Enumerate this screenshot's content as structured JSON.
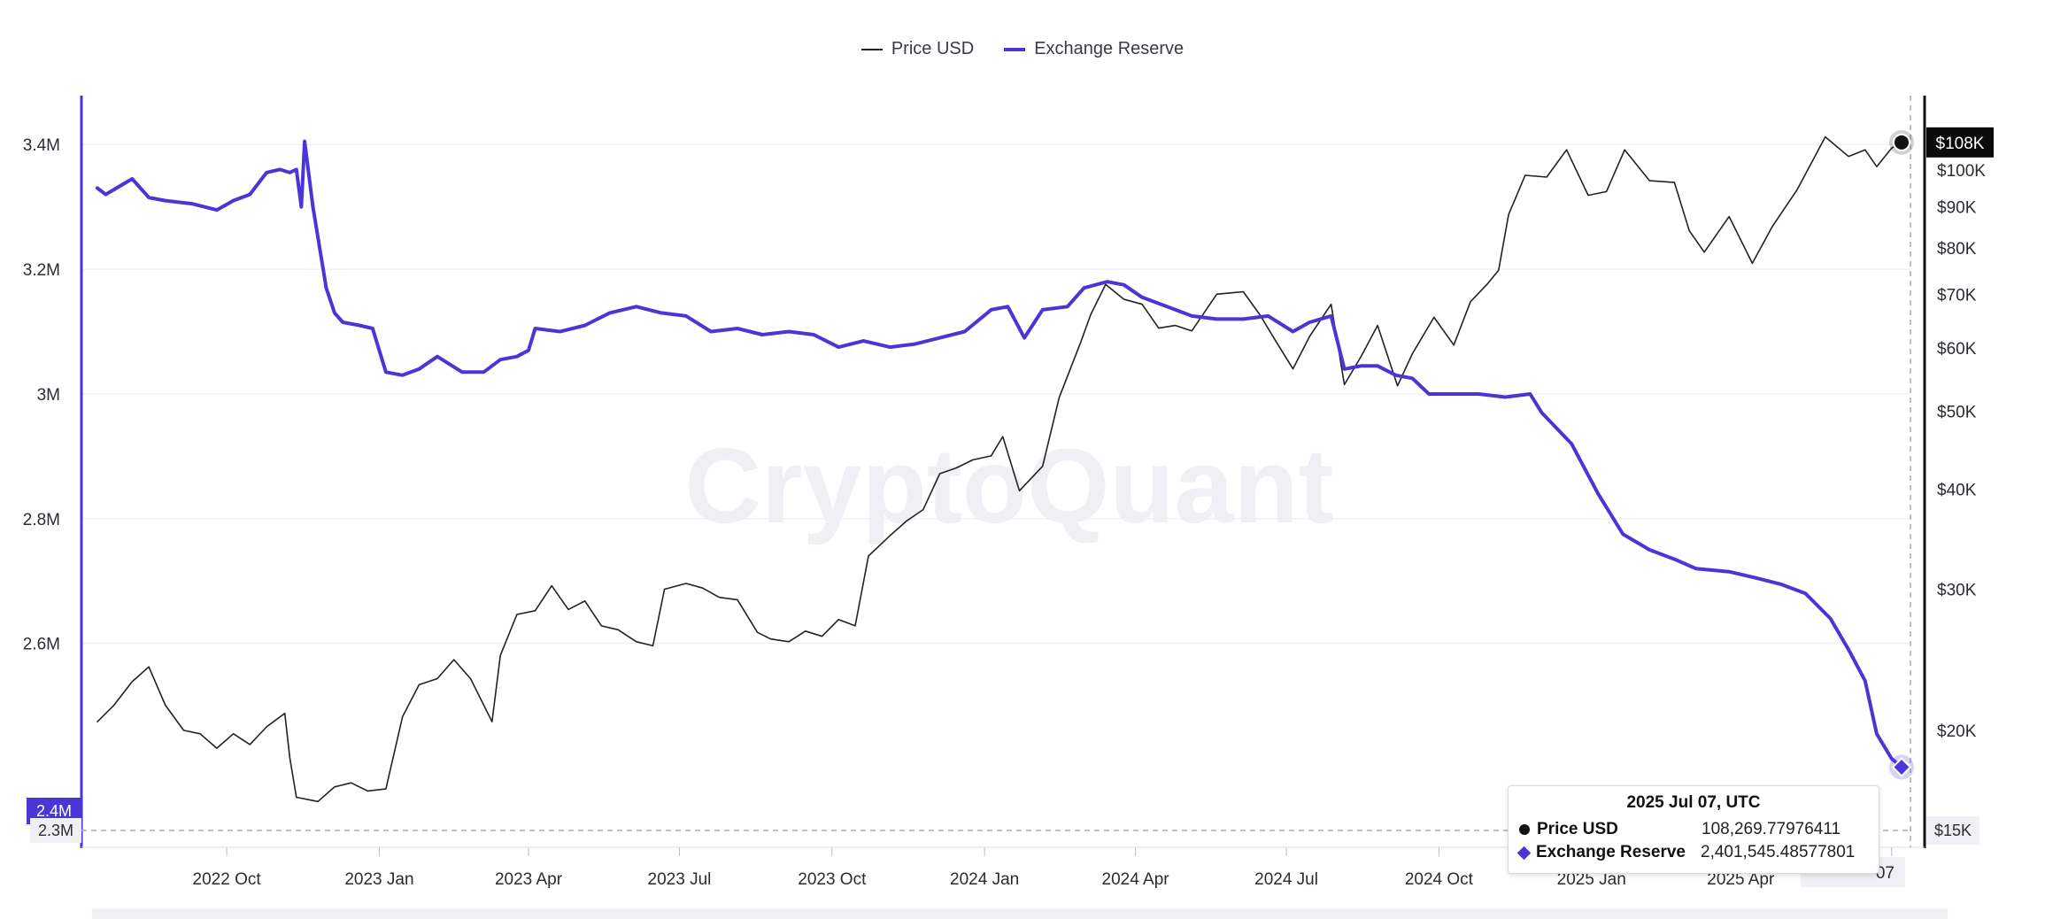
{
  "legend": {
    "price_label": "Price USD",
    "reserve_label": "Exchange Reserve"
  },
  "watermark": "CryptoQuant",
  "colors": {
    "price": "#222222",
    "reserve": "#4b35d6",
    "grid": "#ececf1",
    "badge": "#0b0b0b"
  },
  "tooltip": {
    "title": "2025 Jul 07, UTC",
    "price_label": "Price USD",
    "price_value": "108,269.77976411",
    "reserve_label": "Exchange Reserve",
    "reserve_value": "2,401,545.48577801"
  },
  "chart_data": {
    "type": "line",
    "left_axis": {
      "ticks": [
        2.6,
        2.8,
        3.0,
        3.2,
        3.4
      ],
      "labels": [
        "2.6M",
        "2.8M",
        "3M",
        "3.2M",
        "3.4M"
      ],
      "range": [
        2.3,
        3.45
      ],
      "current_badge": "2.4M",
      "bottom_badge": "2.3M"
    },
    "right_axis": {
      "scale": "log",
      "ticks": [
        20000,
        30000,
        40000,
        50000,
        60000,
        70000,
        80000,
        90000,
        100000
      ],
      "labels": [
        "$20K",
        "$30K",
        "$40K",
        "$50K",
        "$60K",
        "$70K",
        "$80K",
        "$90K",
        "$100K"
      ],
      "range": [
        15000,
        108500
      ],
      "current_badge": "$108K",
      "bottom_badge": "$15K"
    },
    "x_axis": {
      "range": [
        "2022-07-15",
        "2025-07-07"
      ],
      "ticks": [
        "2022-10-01",
        "2023-01-01",
        "2023-04-01",
        "2023-07-01",
        "2023-10-01",
        "2024-01-01",
        "2024-04-01",
        "2024-07-01",
        "2024-10-01",
        "2025-01-01",
        "2025-04-01",
        "2025-07-01"
      ],
      "labels": [
        "2022 Oct",
        "2023 Jan",
        "2023 Apr",
        "2023 Jul",
        "2023 Oct",
        "2024 Jan",
        "2024 Apr",
        "2024 Jul",
        "2024 Oct",
        "2025 Jan",
        "2025 Apr",
        "Jul"
      ],
      "current_badge": "07"
    },
    "series": [
      {
        "name": "Price USD",
        "axis": "right",
        "points": [
          [
            "2022-07-15",
            20500
          ],
          [
            "2022-07-25",
            21500
          ],
          [
            "2022-08-05",
            23000
          ],
          [
            "2022-08-15",
            24000
          ],
          [
            "2022-08-25",
            21500
          ],
          [
            "2022-09-05",
            20000
          ],
          [
            "2022-09-15",
            19800
          ],
          [
            "2022-09-25",
            19000
          ],
          [
            "2022-10-05",
            19800
          ],
          [
            "2022-10-15",
            19200
          ],
          [
            "2022-10-25",
            20200
          ],
          [
            "2022-11-05",
            21000
          ],
          [
            "2022-11-08",
            18500
          ],
          [
            "2022-11-12",
            16500
          ],
          [
            "2022-11-25",
            16300
          ],
          [
            "2022-12-05",
            17000
          ],
          [
            "2022-12-15",
            17200
          ],
          [
            "2022-12-25",
            16800
          ],
          [
            "2023-01-05",
            16900
          ],
          [
            "2023-01-15",
            20800
          ],
          [
            "2023-01-25",
            22800
          ],
          [
            "2023-02-05",
            23200
          ],
          [
            "2023-02-15",
            24500
          ],
          [
            "2023-02-25",
            23200
          ],
          [
            "2023-03-10",
            20500
          ],
          [
            "2023-03-15",
            24800
          ],
          [
            "2023-03-25",
            27900
          ],
          [
            "2023-04-05",
            28200
          ],
          [
            "2023-04-15",
            30300
          ],
          [
            "2023-04-25",
            28300
          ],
          [
            "2023-05-05",
            29000
          ],
          [
            "2023-05-15",
            27000
          ],
          [
            "2023-05-25",
            26700
          ],
          [
            "2023-06-05",
            25800
          ],
          [
            "2023-06-15",
            25500
          ],
          [
            "2023-06-22",
            30000
          ],
          [
            "2023-07-05",
            30500
          ],
          [
            "2023-07-15",
            30100
          ],
          [
            "2023-07-25",
            29300
          ],
          [
            "2023-08-05",
            29100
          ],
          [
            "2023-08-17",
            26500
          ],
          [
            "2023-08-25",
            26000
          ],
          [
            "2023-09-05",
            25800
          ],
          [
            "2023-09-15",
            26600
          ],
          [
            "2023-09-25",
            26200
          ],
          [
            "2023-10-05",
            27500
          ],
          [
            "2023-10-15",
            27000
          ],
          [
            "2023-10-23",
            33000
          ],
          [
            "2023-11-05",
            35000
          ],
          [
            "2023-11-15",
            36500
          ],
          [
            "2023-11-25",
            37700
          ],
          [
            "2023-12-05",
            41800
          ],
          [
            "2023-12-15",
            42500
          ],
          [
            "2023-12-25",
            43500
          ],
          [
            "2024-01-05",
            44000
          ],
          [
            "2024-01-12",
            46500
          ],
          [
            "2024-01-22",
            39800
          ],
          [
            "2024-02-05",
            42700
          ],
          [
            "2024-02-15",
            52000
          ],
          [
            "2024-02-28",
            61000
          ],
          [
            "2024-03-05",
            66000
          ],
          [
            "2024-03-14",
            72000
          ],
          [
            "2024-03-25",
            69000
          ],
          [
            "2024-04-05",
            68000
          ],
          [
            "2024-04-15",
            63500
          ],
          [
            "2024-04-25",
            64000
          ],
          [
            "2024-05-05",
            63000
          ],
          [
            "2024-05-20",
            70000
          ],
          [
            "2024-06-05",
            70500
          ],
          [
            "2024-06-15",
            66000
          ],
          [
            "2024-06-25",
            61000
          ],
          [
            "2024-07-05",
            56500
          ],
          [
            "2024-07-15",
            62000
          ],
          [
            "2024-07-28",
            68000
          ],
          [
            "2024-08-05",
            54000
          ],
          [
            "2024-08-15",
            58500
          ],
          [
            "2024-08-25",
            64000
          ],
          [
            "2024-09-06",
            53800
          ],
          [
            "2024-09-15",
            59000
          ],
          [
            "2024-09-28",
            65500
          ],
          [
            "2024-10-10",
            60500
          ],
          [
            "2024-10-20",
            68500
          ],
          [
            "2024-10-30",
            72000
          ],
          [
            "2024-11-06",
            75000
          ],
          [
            "2024-11-12",
            88000
          ],
          [
            "2024-11-22",
            98500
          ],
          [
            "2024-12-05",
            98000
          ],
          [
            "2024-12-17",
            106000
          ],
          [
            "2024-12-30",
            93000
          ],
          [
            "2025-01-10",
            94000
          ],
          [
            "2025-01-21",
            106000
          ],
          [
            "2025-02-05",
            97000
          ],
          [
            "2025-02-20",
            96500
          ],
          [
            "2025-03-01",
            84000
          ],
          [
            "2025-03-10",
            79000
          ],
          [
            "2025-03-25",
            87500
          ],
          [
            "2025-04-08",
            76500
          ],
          [
            "2025-04-20",
            85000
          ],
          [
            "2025-05-05",
            94500
          ],
          [
            "2025-05-22",
            110000
          ],
          [
            "2025-06-05",
            104000
          ],
          [
            "2025-06-15",
            106000
          ],
          [
            "2025-06-22",
            101000
          ],
          [
            "2025-07-01",
            106500
          ],
          [
            "2025-07-07",
            108270
          ]
        ]
      },
      {
        "name": "Exchange Reserve",
        "axis": "left",
        "points": [
          [
            "2022-07-15",
            3.33
          ],
          [
            "2022-07-20",
            3.32
          ],
          [
            "2022-08-05",
            3.345
          ],
          [
            "2022-08-15",
            3.315
          ],
          [
            "2022-08-25",
            3.31
          ],
          [
            "2022-09-10",
            3.305
          ],
          [
            "2022-09-25",
            3.295
          ],
          [
            "2022-10-05",
            3.31
          ],
          [
            "2022-10-15",
            3.32
          ],
          [
            "2022-10-25",
            3.355
          ],
          [
            "2022-11-02",
            3.36
          ],
          [
            "2022-11-08",
            3.355
          ],
          [
            "2022-11-12",
            3.36
          ],
          [
            "2022-11-15",
            3.3
          ],
          [
            "2022-11-17",
            3.405
          ],
          [
            "2022-11-22",
            3.3
          ],
          [
            "2022-11-30",
            3.17
          ],
          [
            "2022-12-05",
            3.13
          ],
          [
            "2022-12-10",
            3.115
          ],
          [
            "2022-12-20",
            3.11
          ],
          [
            "2022-12-28",
            3.105
          ],
          [
            "2023-01-05",
            3.035
          ],
          [
            "2023-01-15",
            3.03
          ],
          [
            "2023-01-25",
            3.04
          ],
          [
            "2023-02-05",
            3.06
          ],
          [
            "2023-02-20",
            3.035
          ],
          [
            "2023-03-05",
            3.035
          ],
          [
            "2023-03-15",
            3.055
          ],
          [
            "2023-03-25",
            3.06
          ],
          [
            "2023-04-01",
            3.07
          ],
          [
            "2023-04-05",
            3.105
          ],
          [
            "2023-04-20",
            3.1
          ],
          [
            "2023-05-05",
            3.11
          ],
          [
            "2023-05-20",
            3.13
          ],
          [
            "2023-06-05",
            3.14
          ],
          [
            "2023-06-20",
            3.13
          ],
          [
            "2023-07-05",
            3.125
          ],
          [
            "2023-07-20",
            3.1
          ],
          [
            "2023-08-05",
            3.105
          ],
          [
            "2023-08-20",
            3.095
          ],
          [
            "2023-09-05",
            3.1
          ],
          [
            "2023-09-20",
            3.095
          ],
          [
            "2023-10-05",
            3.075
          ],
          [
            "2023-10-20",
            3.085
          ],
          [
            "2023-11-05",
            3.075
          ],
          [
            "2023-11-20",
            3.08
          ],
          [
            "2023-12-05",
            3.09
          ],
          [
            "2023-12-20",
            3.1
          ],
          [
            "2024-01-05",
            3.135
          ],
          [
            "2024-01-15",
            3.14
          ],
          [
            "2024-01-25",
            3.09
          ],
          [
            "2024-02-05",
            3.135
          ],
          [
            "2024-02-20",
            3.14
          ],
          [
            "2024-03-01",
            3.17
          ],
          [
            "2024-03-15",
            3.18
          ],
          [
            "2024-03-25",
            3.175
          ],
          [
            "2024-04-05",
            3.155
          ],
          [
            "2024-04-20",
            3.14
          ],
          [
            "2024-05-05",
            3.125
          ],
          [
            "2024-05-20",
            3.12
          ],
          [
            "2024-06-05",
            3.12
          ],
          [
            "2024-06-20",
            3.125
          ],
          [
            "2024-07-05",
            3.1
          ],
          [
            "2024-07-15",
            3.115
          ],
          [
            "2024-07-28",
            3.125
          ],
          [
            "2024-08-05",
            3.04
          ],
          [
            "2024-08-15",
            3.045
          ],
          [
            "2024-08-25",
            3.045
          ],
          [
            "2024-09-05",
            3.03
          ],
          [
            "2024-09-15",
            3.025
          ],
          [
            "2024-09-25",
            3.0
          ],
          [
            "2024-10-10",
            3.0
          ],
          [
            "2024-10-25",
            3.0
          ],
          [
            "2024-11-10",
            2.995
          ],
          [
            "2024-11-25",
            3.0
          ],
          [
            "2024-12-02",
            2.97
          ],
          [
            "2024-12-20",
            2.92
          ],
          [
            "2025-01-05",
            2.84
          ],
          [
            "2025-01-20",
            2.775
          ],
          [
            "2025-02-05",
            2.75
          ],
          [
            "2025-02-20",
            2.735
          ],
          [
            "2025-03-05",
            2.72
          ],
          [
            "2025-03-25",
            2.715
          ],
          [
            "2025-04-10",
            2.705
          ],
          [
            "2025-04-25",
            2.695
          ],
          [
            "2025-05-10",
            2.68
          ],
          [
            "2025-05-25",
            2.64
          ],
          [
            "2025-06-05",
            2.59
          ],
          [
            "2025-06-15",
            2.54
          ],
          [
            "2025-06-22",
            2.455
          ],
          [
            "2025-07-01",
            2.415
          ],
          [
            "2025-07-07",
            2.4015
          ]
        ]
      }
    ]
  }
}
